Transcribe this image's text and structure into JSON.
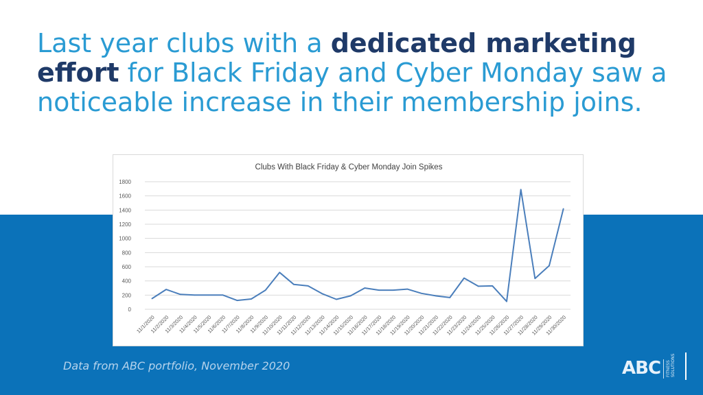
{
  "headline": {
    "part1": "Last year clubs with a ",
    "bold": "dedicated marketing effort",
    "part2": " for Black Friday and Cyber Monday saw a noticeable increase in their membership joins."
  },
  "footnote": "Data from ABC portfolio, November 2020",
  "logo": {
    "main": "ABC",
    "sub1": "FITNESS",
    "sub2": "SOLUTIONS"
  },
  "colors": {
    "headline": "#2a9bd3",
    "headline_bold": "#1f3a68",
    "band": "#0b72b9",
    "line": "#4a7ebb"
  },
  "chart_data": {
    "type": "line",
    "title": "Clubs With Black Friday & Cyber Monday Join Spikes",
    "xlabel": "",
    "ylabel": "",
    "ylim": [
      0,
      1800
    ],
    "yticks": [
      0,
      200,
      400,
      600,
      800,
      1000,
      1200,
      1400,
      1600,
      1800
    ],
    "grid": true,
    "categories": [
      "11/1/2020",
      "11/2/2020",
      "11/3/2020",
      "11/4/2020",
      "11/5/2020",
      "11/6/2020",
      "11/7/2020",
      "11/8/2020",
      "11/9/2020",
      "11/10/2020",
      "11/11/2020",
      "11/12/2020",
      "11/13/2020",
      "11/14/2020",
      "11/15/2020",
      "11/16/2020",
      "11/17/2020",
      "11/18/2020",
      "11/19/2020",
      "11/20/2020",
      "11/21/2020",
      "11/22/2020",
      "11/23/2020",
      "11/24/2020",
      "11/25/2020",
      "11/26/2020",
      "11/27/2020",
      "11/28/2020",
      "11/29/2020",
      "11/30/2020"
    ],
    "series": [
      {
        "name": "",
        "values": [
          150,
          280,
          210,
          200,
          200,
          200,
          125,
          145,
          270,
          520,
          350,
          330,
          220,
          140,
          190,
          300,
          270,
          270,
          285,
          225,
          190,
          165,
          440,
          325,
          330,
          110,
          1690,
          435,
          615,
          1420
        ]
      }
    ]
  }
}
